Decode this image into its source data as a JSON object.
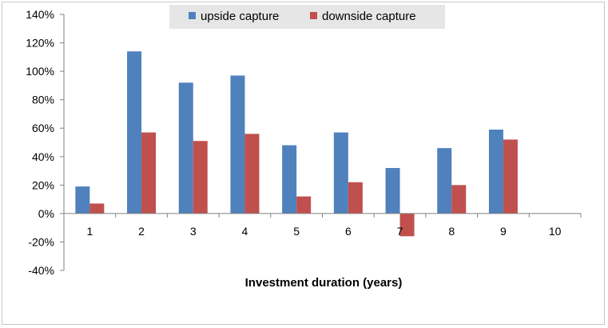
{
  "chart_data": {
    "type": "bar",
    "categories": [
      "1",
      "2",
      "3",
      "4",
      "5",
      "6",
      "7",
      "8",
      "9",
      "10"
    ],
    "series": [
      {
        "name": "upside capture",
        "color": "#4f81bd",
        "values": [
          19,
          114,
          92,
          97,
          48,
          57,
          32,
          46,
          59,
          null
        ]
      },
      {
        "name": "downside capture",
        "color": "#c0504d",
        "values": [
          7,
          57,
          51,
          56,
          12,
          22,
          -16,
          20,
          52,
          null
        ]
      }
    ],
    "title": "",
    "xlabel": "Investment duration (years)",
    "ylabel": "",
    "ylim": [
      -40,
      140
    ],
    "yticks": [
      140,
      120,
      100,
      80,
      60,
      40,
      20,
      0,
      -20,
      -40
    ],
    "ytick_labels": [
      "140%",
      "120%",
      "100%",
      "80%",
      "60%",
      "40%",
      "20%",
      "0%",
      "-20%",
      "-40%"
    ],
    "grid": false,
    "legend_position": "top-center",
    "legend_background": "#e6e6e6"
  }
}
